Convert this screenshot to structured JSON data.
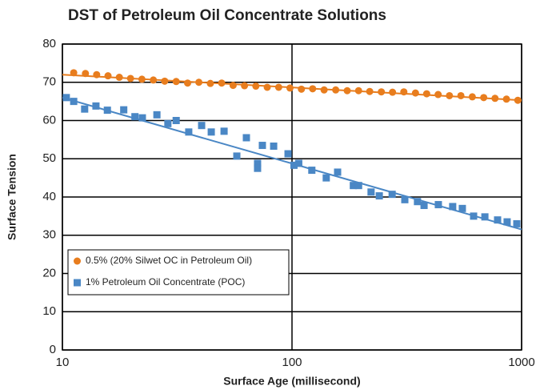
{
  "chart_data": {
    "type": "scatter",
    "title": "DST of Petroleum Oil Concentrate Solutions",
    "x_label": "Surface Age (millisecond)",
    "y_label": "Surface Tension",
    "xlog": true,
    "xlim": [
      10,
      1000
    ],
    "xticks": [
      10,
      100,
      1000
    ],
    "ylim": [
      0,
      80
    ],
    "yticks": [
      0,
      10,
      20,
      30,
      40,
      50,
      60,
      70,
      80
    ],
    "grid": true,
    "legend": "lower left",
    "series": [
      {
        "name": "0.5% (20% Silwet OC in Petroleum Oil)",
        "color": "#e87d1e",
        "marker": "circle",
        "x": [
          11.2,
          12.6,
          14.1,
          15.8,
          17.7,
          19.8,
          22.2,
          24.9,
          27.9,
          31.3,
          35.1,
          39.3,
          44.1,
          49.4,
          55.4,
          62.1,
          69.6,
          78,
          87.5,
          98,
          109.9,
          123,
          138,
          155,
          174,
          195,
          218,
          245,
          274,
          307,
          345,
          386,
          433,
          485,
          544,
          610,
          684,
          766,
          859,
          963
        ],
        "values": [
          72.5,
          72.3,
          72,
          71.7,
          71.3,
          71,
          70.8,
          70.6,
          70.3,
          70.2,
          69.8,
          70,
          69.7,
          69.8,
          69.2,
          69.1,
          69,
          68.7,
          68.7,
          68.5,
          68.2,
          68.3,
          68,
          68,
          67.8,
          67.8,
          67.6,
          67.5,
          67.4,
          67.5,
          67.2,
          67,
          66.8,
          66.5,
          66.5,
          66.2,
          66,
          65.8,
          65.6,
          65.3
        ],
        "trendline": {
          "x": [
            10,
            1000
          ],
          "values": [
            72,
            65.3
          ]
        }
      },
      {
        "name": "1% Petroleum Oil Concentrate (POC)",
        "color": "#4a87c5",
        "marker": "square",
        "x": [
          10.4,
          11.2,
          12.5,
          14.0,
          15.7,
          18.5,
          20.7,
          22.3,
          25.8,
          28.8,
          31.3,
          35.5,
          40.4,
          44.5,
          50.6,
          57.5,
          63.3,
          70.8,
          70.8,
          74.3,
          83.2,
          96.1,
          102,
          107,
          122,
          141,
          158,
          185,
          195,
          221,
          240,
          273,
          310,
          352,
          376,
          434,
          501,
          552,
          618,
          692,
          786,
          865,
          953
        ],
        "values": [
          66,
          65,
          63,
          63.8,
          62.7,
          62.8,
          61,
          60.7,
          61.5,
          59.2,
          60,
          57,
          58.7,
          57,
          57.2,
          50.7,
          55.5,
          48.8,
          47.5,
          53.5,
          53.3,
          51.3,
          48.3,
          48.8,
          47,
          45,
          46.5,
          43,
          43,
          41.3,
          40.3,
          40.7,
          39.3,
          38.8,
          37.8,
          38,
          37.5,
          37,
          35,
          34.8,
          34,
          33.5,
          33
        ],
        "trendline": {
          "x": [
            10,
            1000
          ],
          "values": [
            66,
            31.5
          ]
        }
      }
    ]
  }
}
